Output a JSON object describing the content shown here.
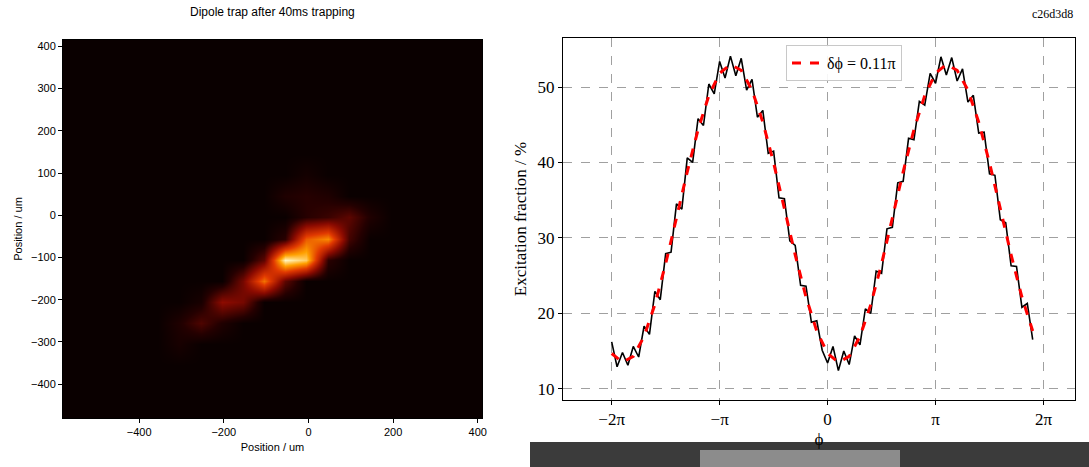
{
  "chart_data": [
    {
      "type": "heatmap",
      "title": "Dipole trap after 40ms trapping",
      "x_label": "Position / um",
      "y_label": "Position / um",
      "x": [
        -555,
        -505,
        -455,
        -405,
        -355,
        -305,
        -255,
        -205,
        -155,
        -105,
        -55,
        -5,
        45,
        95,
        145,
        195,
        245,
        295,
        345,
        395
      ],
      "y": [
        -455,
        -405,
        -355,
        -305,
        -255,
        -205,
        -155,
        -105,
        -55,
        -5,
        45,
        95,
        145,
        195,
        245,
        295,
        345,
        395
      ],
      "z": [
        [
          6,
          6,
          6,
          6,
          6,
          6,
          6,
          6,
          6,
          6,
          6,
          6,
          6,
          6,
          6,
          6,
          6,
          6,
          6,
          6
        ],
        [
          6,
          6,
          6,
          6,
          6,
          6,
          6,
          6,
          6,
          6,
          6,
          6,
          6,
          6,
          6,
          6,
          6,
          6,
          6,
          6
        ],
        [
          6,
          6,
          6,
          6,
          6,
          6,
          6,
          6,
          6,
          6,
          6,
          6,
          6,
          6,
          6,
          6,
          6,
          6,
          6,
          6
        ],
        [
          6,
          6,
          6,
          6,
          6,
          10,
          6,
          6,
          6,
          6,
          6,
          6,
          6,
          6,
          6,
          6,
          6,
          6,
          6,
          6
        ],
        [
          6,
          6,
          6,
          6,
          6,
          12,
          22,
          12,
          6,
          6,
          6,
          6,
          6,
          6,
          6,
          6,
          6,
          6,
          6,
          6
        ],
        [
          6,
          6,
          6,
          6,
          6,
          6,
          10,
          35,
          30,
          6,
          6,
          6,
          6,
          6,
          6,
          6,
          6,
          6,
          6,
          6
        ],
        [
          6,
          6,
          6,
          6,
          6,
          6,
          6,
          6,
          30,
          70,
          25,
          6,
          6,
          6,
          6,
          6,
          6,
          6,
          6,
          6
        ],
        [
          6,
          6,
          6,
          6,
          6,
          6,
          6,
          6,
          6,
          25,
          100,
          90,
          15,
          6,
          6,
          6,
          6,
          6,
          6,
          6
        ],
        [
          6,
          6,
          6,
          6,
          6,
          6,
          6,
          6,
          6,
          6,
          15,
          65,
          75,
          20,
          6,
          6,
          6,
          6,
          6,
          6
        ],
        [
          6,
          6,
          6,
          6,
          6,
          6,
          6,
          6,
          6,
          6,
          6,
          14,
          18,
          25,
          12,
          6,
          6,
          6,
          6,
          6
        ],
        [
          6,
          6,
          6,
          6,
          6,
          6,
          6,
          6,
          6,
          6,
          12,
          14,
          12,
          6,
          6,
          6,
          6,
          6,
          6,
          6
        ],
        [
          6,
          6,
          6,
          6,
          6,
          6,
          6,
          6,
          6,
          6,
          6,
          9,
          6,
          6,
          6,
          6,
          6,
          6,
          6,
          6
        ],
        [
          6,
          6,
          6,
          6,
          6,
          6,
          6,
          6,
          6,
          6,
          6,
          6,
          6,
          6,
          6,
          6,
          6,
          6,
          6,
          6
        ],
        [
          6,
          6,
          6,
          6,
          6,
          6,
          6,
          6,
          6,
          6,
          6,
          6,
          6,
          6,
          6,
          6,
          6,
          6,
          6,
          6
        ],
        [
          6,
          6,
          6,
          6,
          6,
          6,
          6,
          6,
          6,
          6,
          6,
          6,
          6,
          6,
          6,
          6,
          6,
          6,
          6,
          6
        ],
        [
          6,
          6,
          6,
          6,
          6,
          6,
          6,
          6,
          6,
          6,
          6,
          6,
          6,
          6,
          6,
          6,
          6,
          6,
          6,
          6
        ],
        [
          6,
          6,
          6,
          6,
          6,
          6,
          6,
          6,
          6,
          6,
          6,
          6,
          6,
          6,
          6,
          6,
          6,
          6,
          6,
          6
        ],
        [
          6,
          6,
          6,
          6,
          6,
          6,
          6,
          6,
          6,
          6,
          6,
          6,
          6,
          6,
          6,
          6,
          6,
          6,
          6,
          6
        ]
      ],
      "xlim": [
        -580,
        410
      ],
      "ylim": [
        -480,
        415
      ],
      "xticks": [
        -400,
        -200,
        0,
        200,
        400
      ],
      "yticks": [
        -400,
        -300,
        -200,
        -100,
        0,
        100,
        200,
        300,
        400
      ],
      "grid": false
    },
    {
      "type": "line",
      "x_label": "ϕ",
      "y_label": "Excitation fraction / %",
      "annotations": [
        "c26d3d8"
      ],
      "series": [
        {
          "color": "#000000",
          "x": [
            -6.2832,
            -6.1261,
            -5.969,
            -5.8119,
            -5.6549,
            -5.4978,
            -5.3407,
            -5.1836,
            -5.0265,
            -4.8695,
            -4.7124,
            -4.5553,
            -4.3982,
            -4.2412,
            -4.0841,
            -3.927,
            -3.7699,
            -3.6128,
            -3.4558,
            -3.2987,
            -3.1416,
            -2.9845,
            -2.8274,
            -2.6704,
            -2.5133,
            -2.3562,
            -2.1991,
            -2.042,
            -1.885,
            -1.7279,
            -1.5708,
            -1.4137,
            -1.2566,
            -1.0996,
            -0.9425,
            -0.7854,
            -0.6283,
            -0.4712,
            -0.3142,
            -0.1571,
            0,
            0.1571,
            0.3142,
            0.4712,
            0.6283,
            0.7854,
            0.9425,
            1.0996,
            1.2566,
            1.4137,
            1.5708,
            1.7279,
            1.885,
            2.042,
            2.1991,
            2.3562,
            2.5133,
            2.6704,
            2.8274,
            2.9845,
            3.1416,
            3.2987,
            3.4558,
            3.6128,
            3.7699,
            3.927,
            4.0841,
            4.2412,
            4.3982,
            4.5553,
            4.7124,
            4.8695,
            5.0265,
            5.1836,
            5.3407,
            5.4978,
            5.6549,
            5.8119,
            5.969
          ],
          "values": [
            16.2,
            12.9,
            14.8,
            13.1,
            15.6,
            14.2,
            18.3,
            17.2,
            22.9,
            21.8,
            27.9,
            28.1,
            34.5,
            33.8,
            40.6,
            40.0,
            45.8,
            44.9,
            50.4,
            49.1,
            53.4,
            51.2,
            54.1,
            51.5,
            53.8,
            49.6,
            51.0,
            46.0,
            46.9,
            41.2,
            41.5,
            35.3,
            35.2,
            29.6,
            29.0,
            23.7,
            23.6,
            18.8,
            19.0,
            15.1,
            13.4,
            15.6,
            12.4,
            15.0,
            13.2,
            17.0,
            15.8,
            20.6,
            20.0,
            25.6,
            25.3,
            31.2,
            31.4,
            37.3,
            37.5,
            43.2,
            43.0,
            48.1,
            47.6,
            51.8,
            50.5,
            54.0,
            51.6,
            53.9,
            50.8,
            52.4,
            48.0,
            48.9,
            43.9,
            44.0,
            38.5,
            38.3,
            32.4,
            32.0,
            26.3,
            26.2,
            20.8,
            21.3,
            16.5
          ]
        },
        {
          "name": "δϕ = 0.11π",
          "color": "#ff0000",
          "line_style": "dashed",
          "x": [
            -6.2832,
            -5.969,
            -5.6549,
            -5.3407,
            -5.0265,
            -4.7124,
            -4.3982,
            -4.0841,
            -3.7699,
            -3.4558,
            -3.1416,
            -2.8274,
            -2.5133,
            -2.1991,
            -1.885,
            -1.5708,
            -1.2566,
            -0.9425,
            -0.6283,
            -0.3142,
            0,
            0.3142,
            0.6283,
            0.9425,
            1.2566,
            1.5708,
            1.885,
            2.1991,
            2.5133,
            2.8274,
            3.1416,
            3.4558,
            3.7699,
            4.0841,
            4.3982,
            4.7124,
            5.0265,
            5.3407,
            5.6549,
            5.969
          ],
          "values": [
            14.67,
            13.51,
            14.28,
            16.92,
            21.15,
            26.56,
            32.63,
            38.76,
            44.35,
            48.86,
            51.83,
            52.99,
            52.22,
            49.59,
            45.35,
            39.94,
            33.87,
            27.74,
            22.15,
            17.64,
            14.67,
            13.51,
            14.28,
            16.92,
            21.15,
            26.56,
            32.63,
            38.76,
            44.35,
            48.86,
            51.83,
            52.99,
            52.22,
            49.59,
            45.35,
            39.94,
            33.87,
            27.74,
            22.15,
            17.64
          ]
        }
      ],
      "xlim": [
        -7.7,
        7.2
      ],
      "xticks": [
        {
          "value": -6.2832,
          "label": "−2π"
        },
        {
          "value": -3.1416,
          "label": "−π"
        },
        0,
        {
          "value": 3.1416,
          "label": "π"
        },
        {
          "value": 6.2832,
          "label": "2π"
        }
      ],
      "ylim": [
        8.5,
        56.5
      ],
      "yticks": [
        10,
        20,
        30,
        40,
        50
      ],
      "grid": true,
      "legend": "upper center"
    }
  ]
}
